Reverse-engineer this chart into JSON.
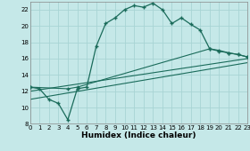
{
  "xlabel": "Humidex (Indice chaleur)",
  "background_color": "#c5e8e8",
  "grid_color": "#a8d4d4",
  "line_color": "#1a6b5a",
  "xlim": [
    0,
    23
  ],
  "ylim": [
    8,
    23
  ],
  "xticks": [
    0,
    1,
    2,
    3,
    4,
    5,
    6,
    7,
    8,
    9,
    10,
    11,
    12,
    13,
    14,
    15,
    16,
    17,
    18,
    19,
    20,
    21,
    22,
    23
  ],
  "yticks": [
    8,
    10,
    12,
    14,
    16,
    18,
    20,
    22
  ],
  "main_x": [
    0,
    1,
    2,
    3,
    4,
    5,
    6,
    7,
    8,
    9,
    10,
    11,
    12,
    13,
    14,
    15,
    16,
    17,
    18,
    19,
    20,
    21,
    22,
    23
  ],
  "main_y": [
    12.5,
    12.3,
    11.0,
    10.5,
    8.5,
    12.3,
    12.5,
    17.5,
    20.3,
    21.0,
    22.0,
    22.5,
    22.3,
    22.8,
    22.0,
    20.3,
    21.0,
    20.2,
    19.5,
    17.2,
    17.0,
    16.7,
    16.5,
    16.2
  ],
  "line1_x": [
    0,
    23
  ],
  "line1_y": [
    11.0,
    15.5
  ],
  "line2_x": [
    0,
    23
  ],
  "line2_y": [
    12.0,
    16.0
  ],
  "line3_x": [
    0,
    4,
    5,
    19,
    20,
    21,
    22,
    23
  ],
  "line3_y": [
    12.5,
    12.3,
    12.5,
    17.2,
    16.9,
    16.7,
    16.5,
    16.2
  ]
}
